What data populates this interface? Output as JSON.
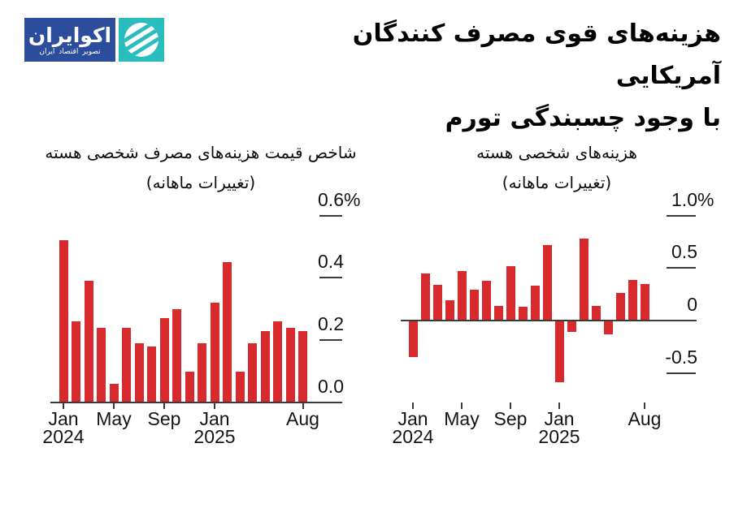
{
  "page": {
    "background": "#ffffff"
  },
  "logo": {
    "title": "اکوایران",
    "subtitle": "تصویر اقتصاد ایران",
    "blue": "#2b4d9b",
    "teal": "#2abdbd"
  },
  "header": {
    "title_line1": "هزینه‌های قوی مصرف کنندگان آمریکایی",
    "title_line2": "با وجود چسبندگی تورم"
  },
  "colors": {
    "bar": "#d8292c",
    "axis": "#3a3a3a",
    "text": "#141414",
    "background": "#ffffff"
  },
  "chart_data": [
    {
      "id": "core-pce-price-index",
      "type": "bar",
      "title_line1": "شاخص قیمت هزینه‌های مصرف شخصی هسته",
      "title_line2": "(تغییرات ماهانه)",
      "unit": "%",
      "categories": [
        "Jan 2024",
        "Feb 2024",
        "Mar 2024",
        "Apr 2024",
        "May 2024",
        "Jun 2024",
        "Jul 2024",
        "Aug 2024",
        "Sep 2024",
        "Oct 2024",
        "Nov 2024",
        "Dec 2024",
        "Jan 2025",
        "Feb 2025",
        "Mar 2025",
        "Apr 2025",
        "May 2025",
        "Jun 2025",
        "Jul 2025",
        "Aug 2025"
      ],
      "values": [
        0.52,
        0.26,
        0.39,
        0.24,
        0.06,
        0.24,
        0.19,
        0.18,
        0.27,
        0.3,
        0.1,
        0.19,
        0.32,
        0.45,
        0.1,
        0.19,
        0.23,
        0.26,
        0.24,
        0.23
      ],
      "ylim": [
        0,
        0.6
      ],
      "grid": false,
      "legend": "none",
      "y_ticks": [
        {
          "value": 0.6,
          "label": "0.6",
          "suffix": "%"
        },
        {
          "value": 0.4,
          "label": "0.4",
          "suffix": ""
        },
        {
          "value": 0.2,
          "label": "0.2",
          "suffix": ""
        },
        {
          "value": 0.0,
          "label": "0.0",
          "suffix": ""
        }
      ],
      "x_ticks": [
        {
          "index": 0,
          "line1": "Jan",
          "line2": "2024"
        },
        {
          "index": 4,
          "line1": "May",
          "line2": ""
        },
        {
          "index": 8,
          "line1": "Sep",
          "line2": ""
        },
        {
          "index": 12,
          "line1": "Jan",
          "line2": "2025"
        },
        {
          "index": 19,
          "line1": "Aug",
          "line2": ""
        }
      ]
    },
    {
      "id": "core-personal-spending",
      "type": "bar",
      "title_line1": "هزینه‌های شخصی هسته",
      "title_line2": "(تغییرات ماهانه)",
      "unit": "%",
      "categories": [
        "Jan 2024",
        "Feb 2024",
        "Mar 2024",
        "Apr 2024",
        "May 2024",
        "Jun 2024",
        "Jul 2024",
        "Aug 2024",
        "Sep 2024",
        "Oct 2024",
        "Nov 2024",
        "Dec 2024",
        "Jan 2025",
        "Feb 2025",
        "Mar 2025",
        "Apr 2025",
        "May 2025",
        "Jun 2025",
        "Jul 2025",
        "Aug 2025"
      ],
      "values": [
        -0.35,
        0.45,
        0.34,
        0.19,
        0.47,
        0.29,
        0.38,
        0.14,
        0.52,
        0.13,
        0.33,
        0.72,
        -0.59,
        -0.11,
        0.78,
        0.14,
        -0.13,
        0.26,
        0.39,
        0.35
      ],
      "ylim": [
        -0.7,
        1.0
      ],
      "grid": false,
      "legend": "none",
      "y_ticks": [
        {
          "value": 1.0,
          "label": "1.0",
          "suffix": "%"
        },
        {
          "value": 0.5,
          "label": "0.5",
          "suffix": ""
        },
        {
          "value": 0.0,
          "label": "0",
          "suffix": ""
        },
        {
          "value": -0.5,
          "label": "-0.5",
          "suffix": ""
        }
      ],
      "x_ticks": [
        {
          "index": 0,
          "line1": "Jan",
          "line2": "2024"
        },
        {
          "index": 4,
          "line1": "May",
          "line2": ""
        },
        {
          "index": 8,
          "line1": "Sep",
          "line2": ""
        },
        {
          "index": 12,
          "line1": "Jan",
          "line2": "2025"
        },
        {
          "index": 19,
          "line1": "Aug",
          "line2": ""
        }
      ]
    }
  ]
}
